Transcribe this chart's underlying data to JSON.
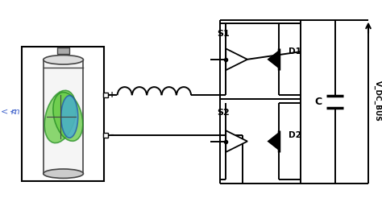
{
  "bg_color": "#ffffff",
  "line_color": "#000000",
  "text_S1": "S1",
  "text_S2": "S2",
  "text_D1": "D1",
  "text_D2": "D2",
  "text_C": "C",
  "text_VDC": "V_DC_BUS",
  "text_plus": "+",
  "text_minus": "-",
  "text_m": "m",
  "m_color": "#4466cc",
  "green_color": "#66cc44",
  "green_dark": "#228B22",
  "blue_color": "#44aadd",
  "blue_dark": "#2255aa",
  "batt_body_color": "#f5f5f5",
  "batt_edge_color": "#444444"
}
